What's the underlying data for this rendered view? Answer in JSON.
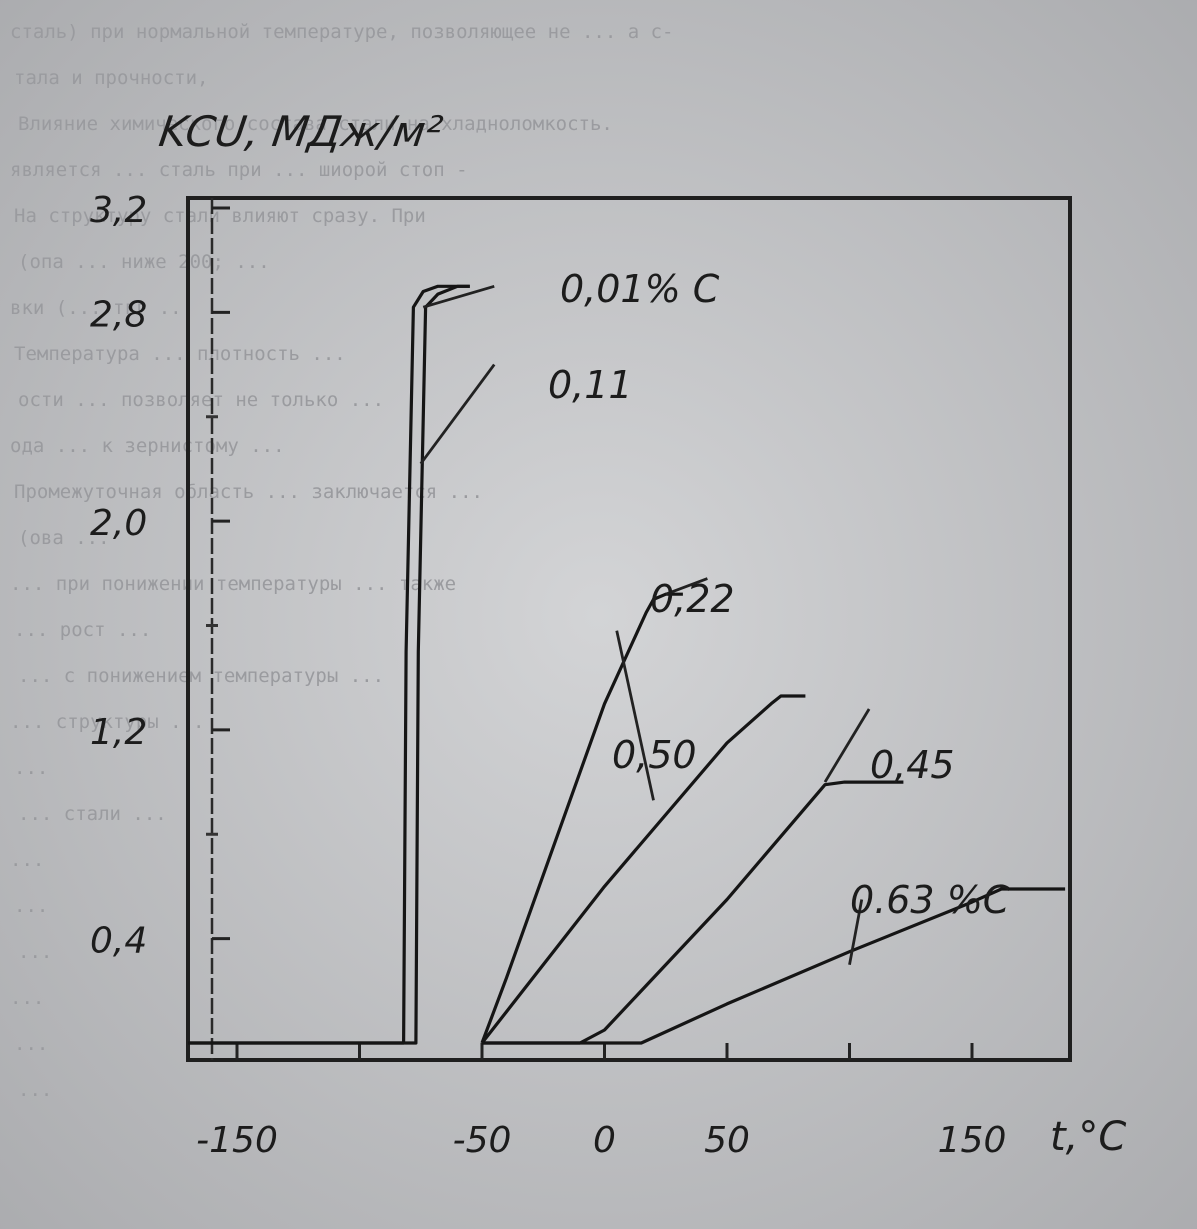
{
  "chart_data": {
    "type": "line",
    "ylabel": "KCU, MДж/м²",
    "xlabel": "t,°C",
    "xlim": [
      -170,
      190
    ],
    "ylim": [
      0,
      3.2
    ],
    "x_ticks": [
      -150,
      -50,
      0,
      50,
      150
    ],
    "y_ticks": [
      0.4,
      1.2,
      2.0,
      2.8,
      3.2
    ],
    "y_tick_labels": [
      "0,4",
      "1,2",
      "2,0",
      "2,8",
      "3,2"
    ],
    "series": [
      {
        "name": "0,01% C",
        "x": [
          -170,
          -82,
          -81,
          -78,
          -74,
          -68,
          -60,
          -55
        ],
        "y": [
          0.0,
          0.0,
          1.5,
          2.82,
          2.88,
          2.9,
          2.9,
          2.9
        ]
      },
      {
        "name": "0,11",
        "x": [
          -170,
          -77,
          -76,
          -73,
          -68,
          -60,
          -55
        ],
        "y": [
          0.0,
          0.0,
          1.5,
          2.82,
          2.87,
          2.9,
          2.9
        ]
      },
      {
        "name": "0,22",
        "x": [
          -50,
          -40,
          0,
          17,
          20,
          25,
          32
        ],
        "y": [
          0.0,
          0.25,
          1.3,
          1.65,
          1.7,
          1.72,
          1.72
        ]
      },
      {
        "name": "0,50",
        "x": [
          -50,
          0,
          50,
          68,
          72,
          82
        ],
        "y": [
          0.0,
          0.6,
          1.15,
          1.3,
          1.33,
          1.33
        ]
      },
      {
        "name": "0,45",
        "x": [
          -50,
          -10,
          0,
          50,
          90,
          98,
          122
        ],
        "y": [
          0.0,
          0.0,
          0.05,
          0.55,
          0.99,
          1.0,
          1.0
        ]
      },
      {
        "name": "0.63 %C",
        "x": [
          -50,
          15,
          50,
          100,
          150,
          162,
          188
        ],
        "y": [
          0.0,
          0.0,
          0.15,
          0.35,
          0.54,
          0.59,
          0.59
        ]
      }
    ],
    "annotations": [
      "0,01% C",
      "0,11",
      "0,22",
      "0,50",
      "0,45",
      "0.63 %C"
    ],
    "grid": false,
    "legend": "none"
  },
  "background_text": [
    "сталь) при нормальной температуре, позволяющее не ... а с-",
    "тала и прочности,",
    "Влияние химического состава стали на хладноломкость.",
    "является ... сталь при ... шиорой стоп  -",
    "На структуру стали влияют сразу. При",
    "(опа ... ниже 200; ... ",
    "вки (... тгг ...",
    "Температура ... плотность ...",
    "ости ... позволяет не только ...",
    "ода ... к зернистому ...",
    "Промежуточная область ... заключается ...",
    "(ова ... ",
    "... при понижении температуры ... также",
    "... рост ...",
    "... с понижением температуры ...",
    "... структуры ...",
    "... ",
    "... стали ...",
    "... ",
    "... ",
    "... ",
    "... ",
    "... ",
    "... "
  ]
}
